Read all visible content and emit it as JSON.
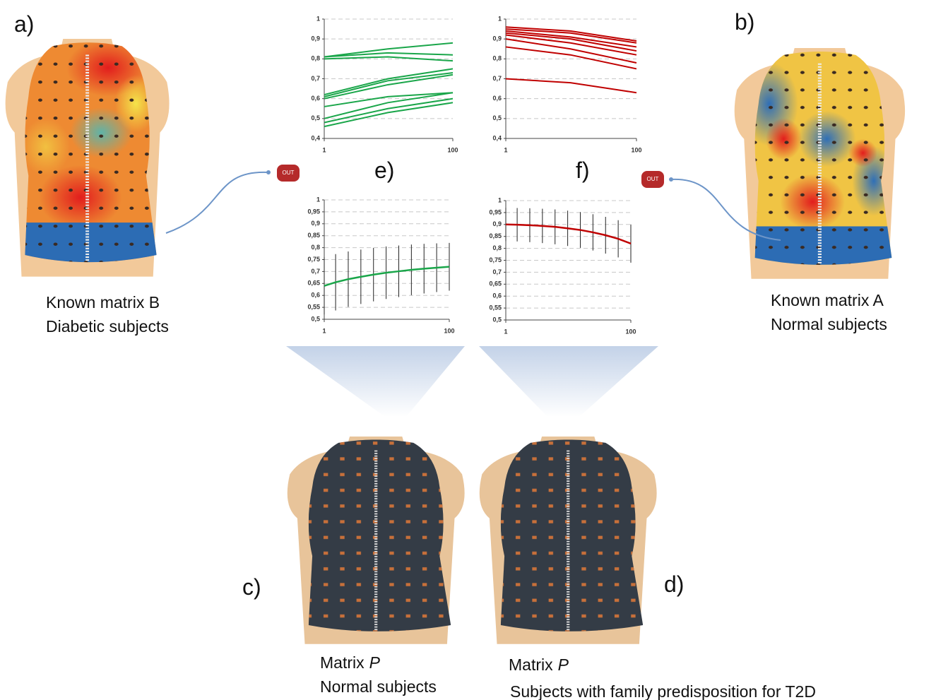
{
  "panel_labels": {
    "a": "a)",
    "b": "b)",
    "c": "c)",
    "d": "d)",
    "e": "e)",
    "f": "f)"
  },
  "captions": {
    "a": [
      "Known matrix B",
      "Diabetic subjects"
    ],
    "b": [
      "Known matrix A",
      "Normal subjects"
    ],
    "c": {
      "word": "Matrix",
      "symbol": "P",
      "group": "Normal subjects"
    },
    "d": {
      "word": "Matrix",
      "symbol": "P",
      "group": "Subjects with family predisposition for T2D"
    }
  },
  "buttons": [
    "OUT",
    "OUT"
  ],
  "chart_data": [
    {
      "type": "line",
      "x": [
        1,
        50,
        100
      ],
      "xlim": [
        1,
        100
      ],
      "xticks": [
        1,
        100
      ],
      "ylim": [
        0.4,
        1
      ],
      "yticks": [
        {
          "value": 0.4,
          "label": "0,4"
        },
        {
          "value": 0.5,
          "label": "0,5"
        },
        {
          "value": 0.6,
          "label": "0,6"
        },
        {
          "value": 0.7,
          "label": "0,7"
        },
        {
          "value": 0.8,
          "label": "0,8"
        },
        {
          "value": 0.9,
          "label": "0,9"
        },
        1
      ],
      "grid": true,
      "series": [
        {
          "color": "#1aa64a",
          "values": [
            0.81,
            0.85,
            0.88
          ]
        },
        {
          "color": "#1aa64a",
          "values": [
            0.8,
            0.81,
            0.79
          ]
        },
        {
          "color": "#1aa64a",
          "values": [
            0.81,
            0.83,
            0.82
          ]
        },
        {
          "color": "#1aa64a",
          "values": [
            0.62,
            0.7,
            0.75
          ]
        },
        {
          "color": "#1aa64a",
          "values": [
            0.61,
            0.69,
            0.73
          ]
        },
        {
          "color": "#1aa64a",
          "values": [
            0.6,
            0.67,
            0.72
          ]
        },
        {
          "color": "#1aa64a",
          "values": [
            0.56,
            0.61,
            0.63
          ]
        },
        {
          "color": "#1aa64a",
          "values": [
            0.5,
            0.58,
            0.63
          ]
        },
        {
          "color": "#1aa64a",
          "values": [
            0.48,
            0.55,
            0.6
          ]
        },
        {
          "color": "#1aa64a",
          "values": [
            0.46,
            0.53,
            0.58
          ]
        }
      ]
    },
    {
      "type": "line",
      "x": [
        1,
        50,
        100
      ],
      "xlim": [
        1,
        100
      ],
      "xticks": [
        1,
        100
      ],
      "ylim": [
        0.4,
        1
      ],
      "yticks": [
        {
          "value": 0.4,
          "label": "0,4"
        },
        {
          "value": 0.5,
          "label": "0,5"
        },
        {
          "value": 0.6,
          "label": "0,6"
        },
        {
          "value": 0.7,
          "label": "0,7"
        },
        {
          "value": 0.8,
          "label": "0,8"
        },
        {
          "value": 0.9,
          "label": "0,9"
        },
        1
      ],
      "grid": true,
      "series": [
        {
          "color": "#c00000",
          "values": [
            0.96,
            0.94,
            0.89
          ]
        },
        {
          "color": "#c00000",
          "values": [
            0.95,
            0.93,
            0.88
          ]
        },
        {
          "color": "#c00000",
          "values": [
            0.94,
            0.91,
            0.86
          ]
        },
        {
          "color": "#c00000",
          "values": [
            0.93,
            0.9,
            0.84
          ]
        },
        {
          "color": "#c00000",
          "values": [
            0.92,
            0.88,
            0.82
          ]
        },
        {
          "color": "#c00000",
          "values": [
            0.9,
            0.85,
            0.78
          ]
        },
        {
          "color": "#c00000",
          "values": [
            0.86,
            0.82,
            0.75
          ]
        },
        {
          "color": "#c00000",
          "values": [
            0.7,
            0.68,
            0.63
          ]
        }
      ]
    },
    {
      "type": "line",
      "x": [
        1,
        10,
        20,
        30,
        40,
        50,
        60,
        70,
        80,
        90,
        100
      ],
      "xlim": [
        1,
        100
      ],
      "xticks": [
        1,
        100
      ],
      "ylim": [
        0.5,
        1
      ],
      "yticks": [
        {
          "value": 0.5,
          "label": "0,5"
        },
        {
          "value": 0.55,
          "label": "0,55"
        },
        {
          "value": 0.6,
          "label": "0,6"
        },
        {
          "value": 0.65,
          "label": "0,65"
        },
        {
          "value": 0.7,
          "label": "0,7"
        },
        {
          "value": 0.75,
          "label": "0,75"
        },
        {
          "value": 0.8,
          "label": "0,8"
        },
        {
          "value": 0.85,
          "label": "0,85"
        },
        {
          "value": 0.9,
          "label": "0,9"
        },
        {
          "value": 0.95,
          "label": "0,95"
        },
        1
      ],
      "grid": true,
      "color": "#1aa64a",
      "error_color": "#222222",
      "values": [
        0.64,
        0.655,
        0.668,
        0.678,
        0.687,
        0.695,
        0.701,
        0.707,
        0.712,
        0.716,
        0.72
      ],
      "errors": [
        0.12,
        0.118,
        0.116,
        0.114,
        0.112,
        0.11,
        0.108,
        0.106,
        0.104,
        0.102,
        0.1
      ]
    },
    {
      "type": "line",
      "x": [
        1,
        10,
        20,
        30,
        40,
        50,
        60,
        70,
        80,
        90,
        100
      ],
      "xlim": [
        1,
        100
      ],
      "xticks": [
        1,
        100
      ],
      "ylim": [
        0.5,
        1
      ],
      "yticks": [
        {
          "value": 0.5,
          "label": "0,5"
        },
        {
          "value": 0.55,
          "label": "0,55"
        },
        {
          "value": 0.6,
          "label": "0,6"
        },
        {
          "value": 0.65,
          "label": "0,65"
        },
        {
          "value": 0.7,
          "label": "0,7"
        },
        {
          "value": 0.75,
          "label": "0,75"
        },
        {
          "value": 0.8,
          "label": "0,8"
        },
        {
          "value": 0.85,
          "label": "0,85"
        },
        {
          "value": 0.9,
          "label": "0,9"
        },
        {
          "value": 0.95,
          "label": "0,95"
        },
        1
      ],
      "grid": true,
      "color": "#c00000",
      "error_color": "#222222",
      "values": [
        0.9,
        0.899,
        0.897,
        0.894,
        0.89,
        0.884,
        0.877,
        0.867,
        0.855,
        0.84,
        0.82
      ],
      "errors": [
        0.07,
        0.07,
        0.071,
        0.072,
        0.073,
        0.074,
        0.075,
        0.076,
        0.077,
        0.078,
        0.08
      ]
    }
  ]
}
